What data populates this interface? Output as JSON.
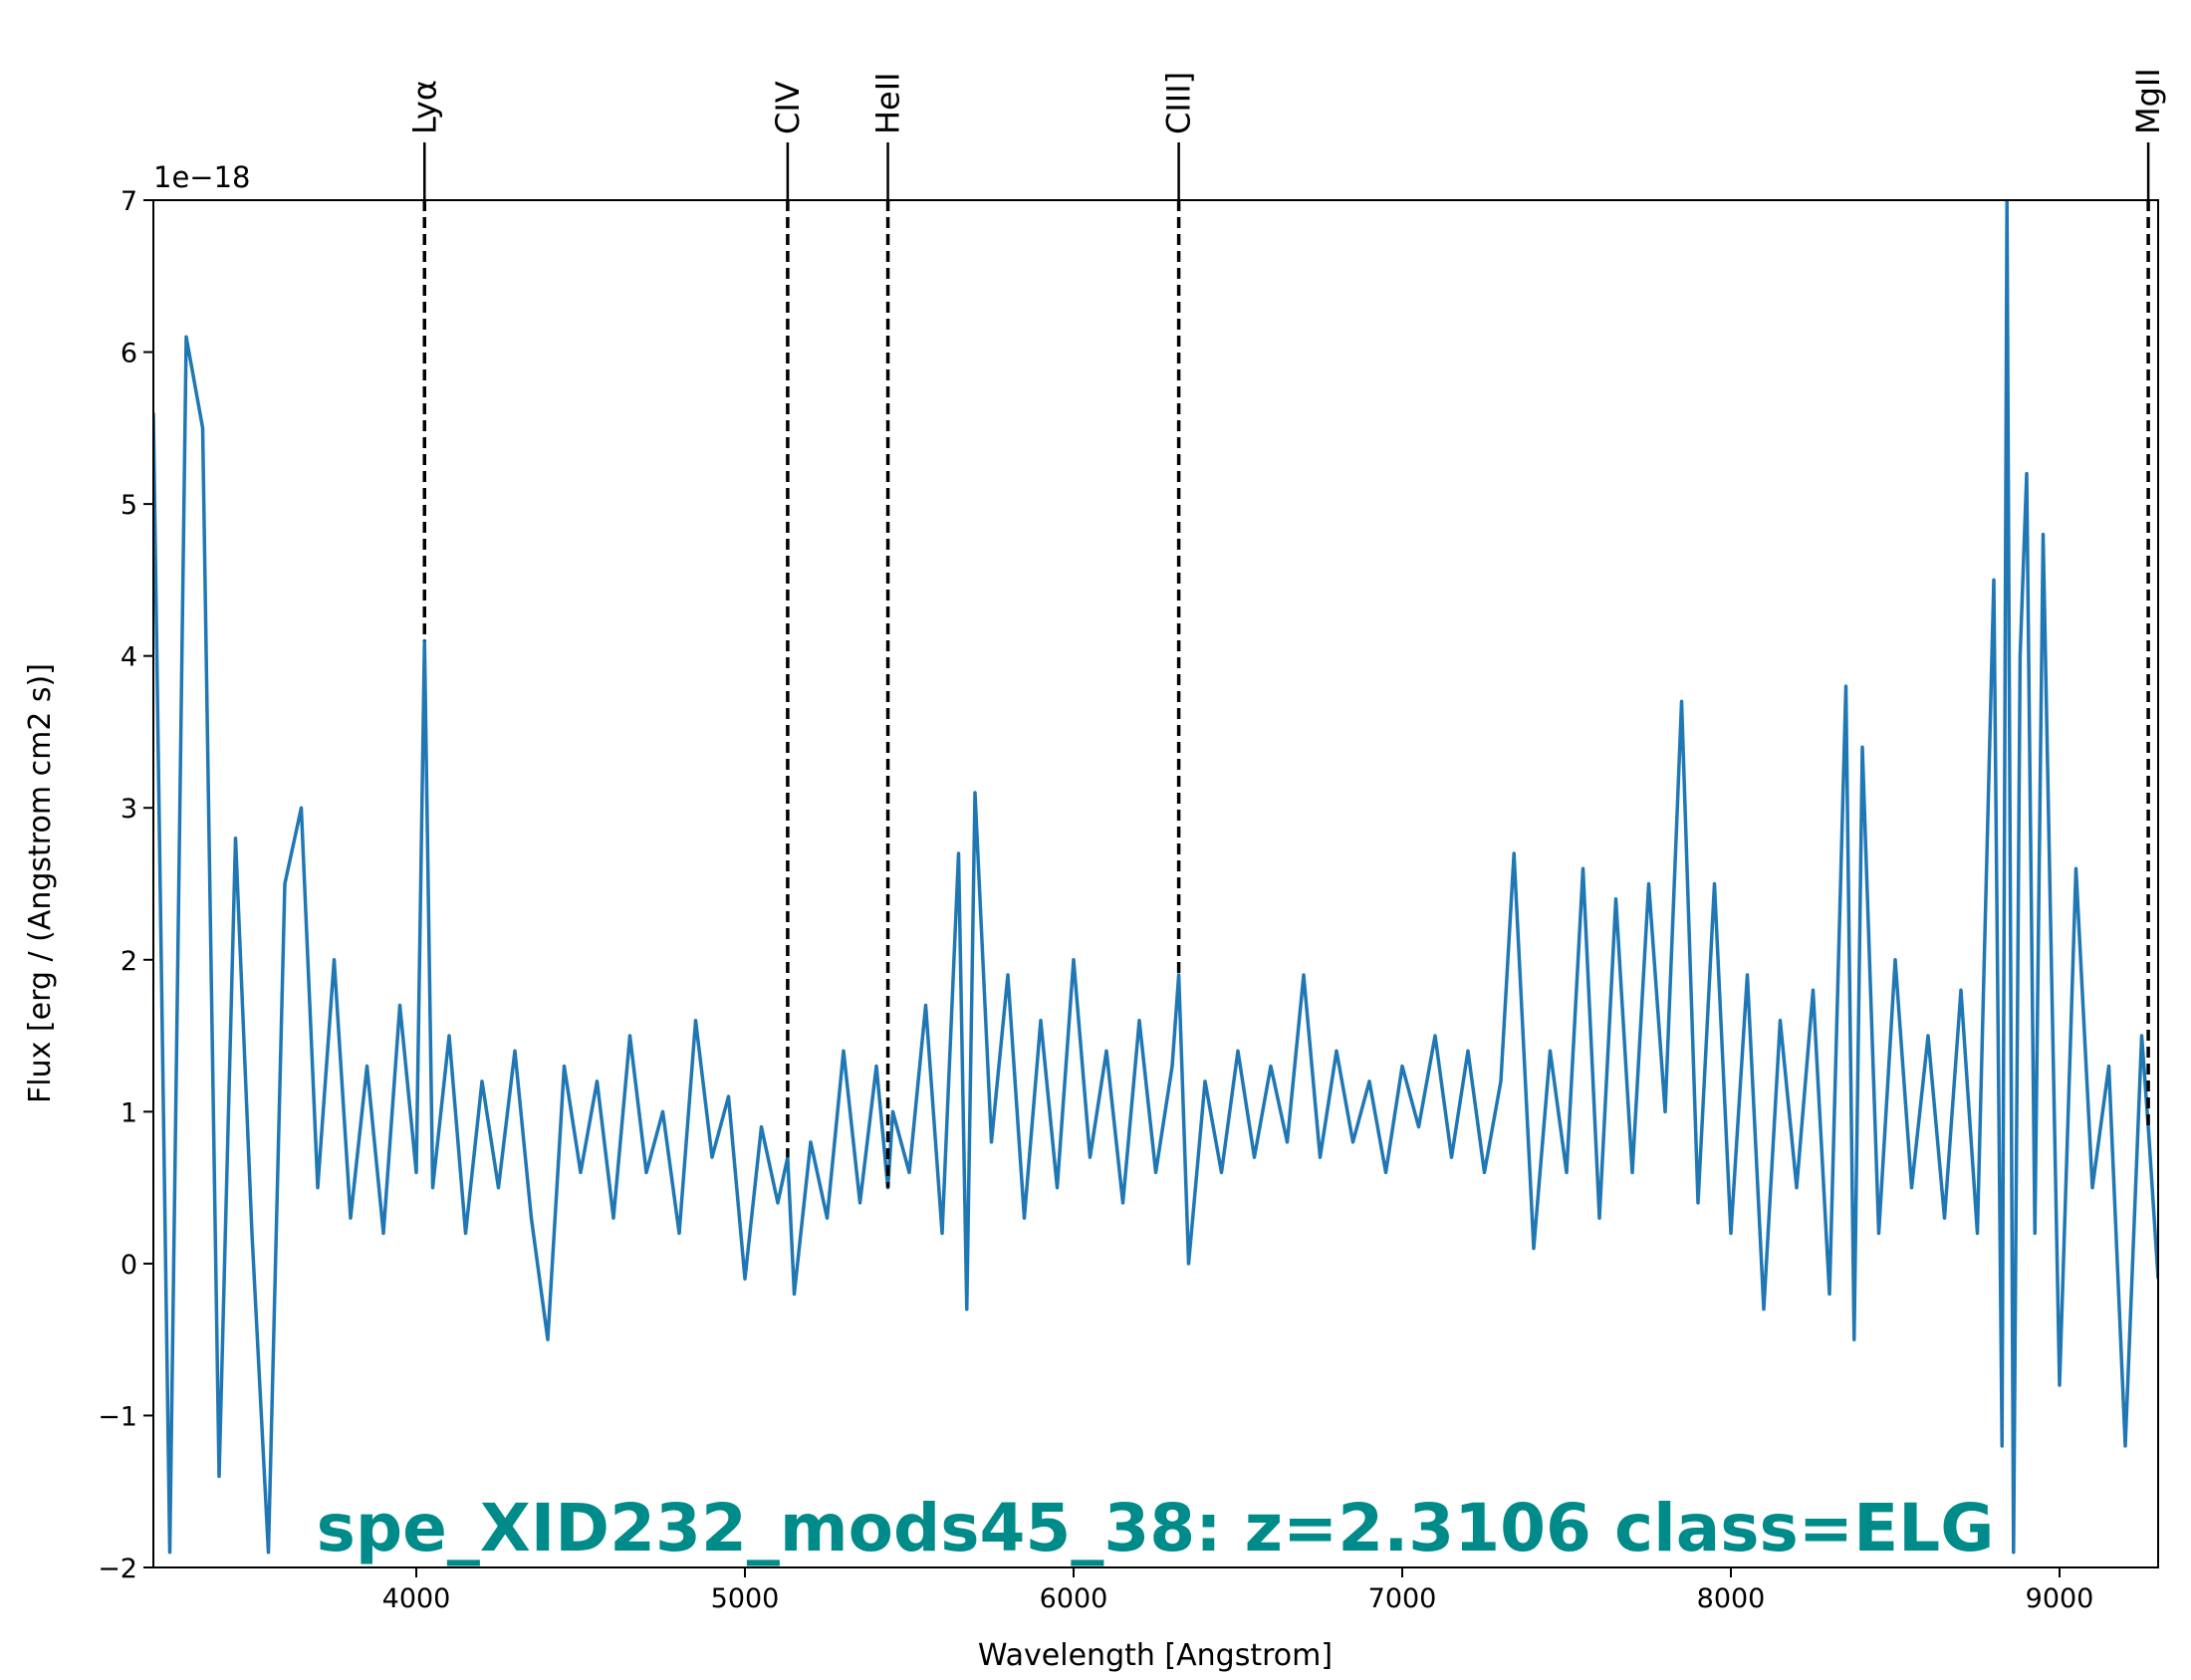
{
  "chart_data": {
    "type": "line",
    "title": "spe_XID232_mods45_38: z=2.3106 class=ELG",
    "x_label": "Wavelength [Angstrom]",
    "y_label": "Flux [erg / (Angstrom cm2 s)]",
    "y_offset_label": "1e−18",
    "color": "#1f77b4",
    "title_color": "#008b8b",
    "x": [
      3200,
      3250,
      3300,
      3350,
      3400,
      3450,
      3500,
      3550,
      3600,
      3650,
      3700,
      3750,
      3800,
      3850,
      3900,
      3950,
      4000,
      4025,
      4050,
      4100,
      4150,
      4200,
      4250,
      4300,
      4350,
      4400,
      4450,
      4500,
      4550,
      4600,
      4650,
      4700,
      4750,
      4800,
      4850,
      4900,
      4950,
      5000,
      5050,
      5100,
      5130,
      5150,
      5200,
      5250,
      5300,
      5350,
      5400,
      5435,
      5450,
      5500,
      5550,
      5600,
      5650,
      5675,
      5700,
      5750,
      5800,
      5850,
      5900,
      5950,
      6000,
      6050,
      6100,
      6150,
      6200,
      6250,
      6300,
      6320,
      6350,
      6400,
      6450,
      6500,
      6550,
      6600,
      6650,
      6700,
      6750,
      6800,
      6850,
      6900,
      6950,
      7000,
      7050,
      7100,
      7150,
      7200,
      7250,
      7300,
      7340,
      7400,
      7450,
      7500,
      7550,
      7600,
      7650,
      7700,
      7750,
      7800,
      7850,
      7900,
      7950,
      8000,
      8050,
      8100,
      8150,
      8200,
      8250,
      8300,
      8350,
      8375,
      8400,
      8450,
      8500,
      8550,
      8600,
      8650,
      8700,
      8750,
      8800,
      8825,
      8840,
      8860,
      8880,
      8900,
      8925,
      8950,
      9000,
      9050,
      9100,
      9150,
      9200,
      9250,
      9270,
      9300
    ],
    "values": [
      5.6,
      -1.9,
      6.1,
      5.5,
      -1.4,
      2.8,
      0.2,
      -1.9,
      2.5,
      3.0,
      0.5,
      2.0,
      0.3,
      1.3,
      0.2,
      1.7,
      0.6,
      4.1,
      0.5,
      1.5,
      0.2,
      1.2,
      0.5,
      1.4,
      0.3,
      -0.5,
      1.3,
      0.6,
      1.2,
      0.3,
      1.5,
      0.6,
      1.0,
      0.2,
      1.6,
      0.7,
      1.1,
      -0.1,
      0.9,
      0.4,
      0.7,
      -0.2,
      0.8,
      0.3,
      1.4,
      0.4,
      1.3,
      0.5,
      1.0,
      0.6,
      1.7,
      0.2,
      2.7,
      -0.3,
      3.1,
      0.8,
      1.9,
      0.3,
      1.6,
      0.5,
      2.0,
      0.7,
      1.4,
      0.4,
      1.6,
      0.6,
      1.3,
      1.9,
      0.0,
      1.2,
      0.6,
      1.4,
      0.7,
      1.3,
      0.8,
      1.9,
      0.7,
      1.4,
      0.8,
      1.2,
      0.6,
      1.3,
      0.9,
      1.5,
      0.7,
      1.4,
      0.6,
      1.2,
      2.7,
      0.1,
      1.4,
      0.6,
      2.6,
      0.3,
      2.4,
      0.6,
      2.5,
      1.0,
      3.7,
      0.4,
      2.5,
      0.2,
      1.9,
      -0.3,
      1.6,
      0.5,
      1.8,
      -0.2,
      3.8,
      -0.5,
      3.4,
      0.2,
      2.0,
      0.5,
      1.5,
      0.3,
      1.8,
      0.2,
      4.5,
      -1.2,
      7.0,
      -1.9,
      4.0,
      5.2,
      0.2,
      4.8,
      -0.8,
      2.6,
      0.5,
      1.3,
      -1.2,
      1.5,
      0.9,
      -0.1
    ],
    "xlim": [
      3200,
      9300
    ],
    "ylim": [
      -2,
      7
    ],
    "xticks": [
      4000,
      5000,
      6000,
      7000,
      8000,
      9000
    ],
    "yticks": [
      {
        "value": -2,
        "label": "−2"
      },
      {
        "value": -1,
        "label": "−1"
      },
      0,
      1,
      2,
      3,
      4,
      5,
      6,
      7
    ],
    "lines": [
      {
        "label": "Lyα",
        "x": 4025,
        "y_end": 4.1
      },
      {
        "label": "CIV",
        "x": 5130,
        "y_end": 0.7
      },
      {
        "label": "HeII",
        "x": 5435,
        "y_end": 0.5
      },
      {
        "label": "CIII]",
        "x": 6320,
        "y_end": 1.9
      },
      {
        "label": "MgII",
        "x": 9270,
        "y_end": 0.9
      }
    ]
  }
}
